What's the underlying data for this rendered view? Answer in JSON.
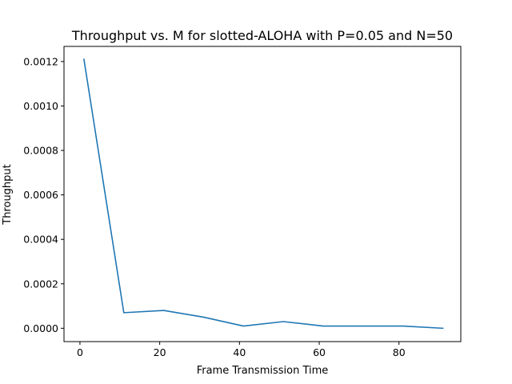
{
  "chart_data": {
    "type": "line",
    "title": "Throughput vs. M for slotted-ALOHA with P=0.05 and N=50",
    "xlabel": "Frame Transmission Time",
    "ylabel": "Throughput",
    "xlim": [
      -4,
      95.5
    ],
    "ylim": [
      -6e-05,
      0.001268
    ],
    "xticks": [
      0,
      20,
      40,
      60,
      80
    ],
    "xtick_labels": [
      "0",
      "20",
      "40",
      "60",
      "80"
    ],
    "yticks": [
      0,
      0.0002,
      0.0004,
      0.0006,
      0.0008,
      0.001,
      0.0012
    ],
    "ytick_labels": [
      "0.0000",
      "0.0002",
      "0.0004",
      "0.0006",
      "0.0008",
      "0.0010",
      "0.0012"
    ],
    "grid": false,
    "series": [
      {
        "color": "#1f77b4",
        "x": [
          1,
          11,
          21,
          31,
          41,
          51,
          61,
          71,
          81,
          91
        ],
        "y": [
          0.00121,
          7e-05,
          8e-05,
          5e-05,
          1e-05,
          3e-05,
          1e-05,
          1e-05,
          1e-05,
          0.0
        ]
      }
    ]
  }
}
